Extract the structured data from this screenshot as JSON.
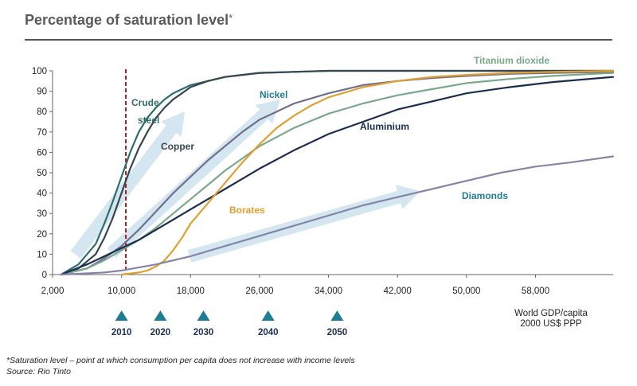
{
  "title": "Percentage of saturation level",
  "title_star": "*",
  "footnote": "*Saturation level – point at which consumption per capita does not increase with income levels",
  "source": "Source: Rio Tinto",
  "colors": {
    "crude_steel": "#2f6e6e",
    "copper": "#37474f",
    "nickel": "#716f8e",
    "titanium": "#79a98a",
    "aluminium": "#1c2d52",
    "borates": "#e0a030",
    "diamonds": "#8585a8",
    "arrow": "#cfe3ee",
    "marker": "#1f7d93",
    "dashed_line": "#a31b1b"
  },
  "chart_data": {
    "type": "line",
    "title": "Percentage of saturation level",
    "xlabel": "World GDP/capita\n2000 US$ PPP",
    "xlabel_lines": [
      "World GDP/capita",
      "2000 US$ PPP"
    ],
    "ylabel": "",
    "xlim": [
      2000,
      67000
    ],
    "ylim": [
      0,
      100
    ],
    "x_ticks": [
      2000,
      10000,
      18000,
      26000,
      34000,
      42000,
      50000,
      58000
    ],
    "x_tick_labels": [
      "2,000",
      "10,000",
      "18,000",
      "26,000",
      "34,000",
      "42,000",
      "50,000",
      "58,000"
    ],
    "y_ticks": [
      0,
      10,
      20,
      30,
      40,
      50,
      60,
      70,
      80,
      90,
      100
    ],
    "y_tick_labels": [
      "0",
      "10",
      "20",
      "30",
      "40",
      "50",
      "60",
      "70",
      "80",
      "90",
      "100"
    ],
    "vertical_marker_x": 10500,
    "series": [
      {
        "key": "crude_steel",
        "name": "Crude steel",
        "x": [
          3000,
          5000,
          7000,
          8000,
          9000,
          10000,
          11000,
          12000,
          13000,
          14000,
          15000,
          16000,
          17000,
          18000,
          20000,
          22000,
          24000,
          26000,
          30000,
          34000,
          67000
        ],
        "y": [
          0,
          5,
          15,
          25,
          36,
          48,
          60,
          70,
          77,
          82,
          86,
          89,
          91,
          93,
          95,
          97,
          98,
          99,
          99.5,
          100,
          100
        ]
      },
      {
        "key": "copper",
        "name": "Copper",
        "x": [
          3000,
          5000,
          7000,
          8000,
          9000,
          10000,
          11000,
          12000,
          13000,
          14000,
          15000,
          16000,
          17000,
          18000,
          20000,
          22000,
          24000,
          26000,
          30000,
          34000,
          67000
        ],
        "y": [
          0,
          3,
          10,
          18,
          28,
          40,
          52,
          62,
          70,
          77,
          82,
          86,
          89,
          92,
          95,
          97,
          98,
          99,
          99.5,
          100,
          100
        ]
      },
      {
        "key": "nickel",
        "name": "Nickel",
        "x": [
          3000,
          6000,
          8000,
          10000,
          12000,
          14000,
          16000,
          18000,
          20000,
          22000,
          24000,
          26000,
          28000,
          30000,
          34000,
          38000,
          42000,
          46000,
          50000,
          55000,
          60000,
          67000
        ],
        "y": [
          0,
          3,
          8,
          14,
          22,
          31,
          40,
          48,
          56,
          63,
          70,
          76,
          80,
          84,
          89,
          93,
          95,
          96.5,
          97.5,
          98.5,
          99,
          99.5
        ]
      },
      {
        "key": "titanium",
        "name": "Titanium dioxide",
        "x": [
          3000,
          6000,
          8000,
          10000,
          12000,
          14000,
          16000,
          18000,
          20000,
          22000,
          24000,
          26000,
          30000,
          34000,
          38000,
          42000,
          46000,
          50000,
          55000,
          60000,
          67000
        ],
        "y": [
          0,
          3,
          7,
          12,
          17,
          23,
          30,
          37,
          44,
          51,
          57,
          63,
          72,
          79,
          84,
          88,
          91,
          94,
          96,
          97.5,
          99
        ]
      },
      {
        "key": "aluminium",
        "name": "Aluminium",
        "x": [
          3000,
          6000,
          8000,
          10000,
          12000,
          14000,
          16000,
          18000,
          20000,
          22000,
          24000,
          26000,
          30000,
          34000,
          38000,
          42000,
          46000,
          50000,
          55000,
          60000,
          67000
        ],
        "y": [
          0,
          5,
          9,
          13,
          17,
          22,
          27,
          32,
          37,
          42,
          47,
          52,
          61,
          69,
          75,
          81,
          85,
          89,
          92,
          94.5,
          97
        ]
      },
      {
        "key": "borates",
        "name": "Borates",
        "x": [
          10000,
          12000,
          13000,
          14000,
          15000,
          16000,
          17000,
          18000,
          20000,
          22000,
          24000,
          26000,
          28000,
          30000,
          32000,
          34000,
          38000,
          42000,
          46000,
          50000,
          55000,
          60000,
          67000
        ],
        "y": [
          0,
          1,
          2,
          4,
          7,
          12,
          18,
          25,
          35,
          45,
          55,
          64,
          72,
          78,
          83,
          87,
          92,
          95,
          97,
          98,
          99,
          99.5,
          100
        ]
      },
      {
        "key": "diamonds",
        "name": "Diamonds",
        "x": [
          3000,
          8000,
          10000,
          14000,
          18000,
          22000,
          26000,
          30000,
          34000,
          38000,
          42000,
          46000,
          50000,
          54000,
          58000,
          62000,
          67000
        ],
        "y": [
          0,
          1,
          2,
          5,
          9,
          14,
          19,
          24,
          29,
          34,
          38,
          42,
          46,
          50,
          53,
          55,
          58
        ]
      }
    ],
    "series_labels": [
      {
        "key": "crude_steel",
        "lines": [
          "Crude",
          "steel"
        ],
        "color_key": "crude_steel"
      },
      {
        "key": "copper",
        "lines": [
          "Copper"
        ],
        "color_key": "copper"
      },
      {
        "key": "nickel",
        "lines": [
          "Nickel"
        ],
        "color_key": "marker"
      },
      {
        "key": "titanium",
        "lines": [
          "Titanium dioxide"
        ],
        "color_key": "titanium"
      },
      {
        "key": "aluminium",
        "lines": [
          "Aluminium"
        ],
        "color_key": "aluminium"
      },
      {
        "key": "borates",
        "lines": [
          "Borates"
        ],
        "color_key": "borates"
      },
      {
        "key": "diamonds",
        "lines": [
          "Diamonds"
        ],
        "color_key": "marker"
      }
    ],
    "year_markers": [
      {
        "label": "2010",
        "x": 10000
      },
      {
        "label": "2020",
        "x": 14500
      },
      {
        "label": "2030",
        "x": 19500
      },
      {
        "label": "2040",
        "x": 27000
      },
      {
        "label": "2050",
        "x": 35000
      }
    ]
  }
}
